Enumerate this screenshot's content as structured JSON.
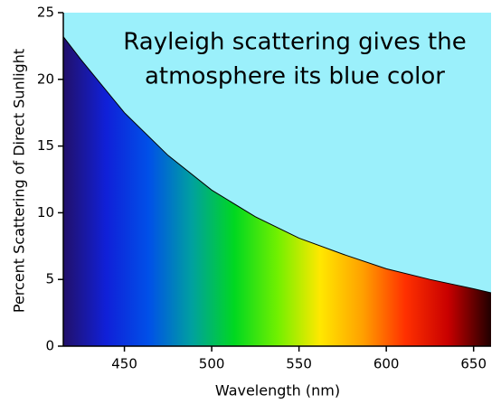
{
  "chart_data": {
    "type": "area",
    "annotation": [
      "Rayleigh scattering gives the",
      "atmosphere its blue color"
    ],
    "x_label": "Wavelength (nm)",
    "y_label": "Percent Scattering of Direct Sunlight",
    "x": [
      415,
      425,
      450,
      475,
      500,
      525,
      550,
      575,
      600,
      625,
      650,
      660
    ],
    "values": [
      23.2,
      21.5,
      17.5,
      14.3,
      11.7,
      9.7,
      8.1,
      6.9,
      5.8,
      5.0,
      4.3,
      4.0
    ],
    "xlim": [
      415,
      660
    ],
    "xticks": [
      450,
      500,
      550,
      600,
      650
    ],
    "ylim": [
      0,
      25
    ],
    "yticks": [
      0,
      5,
      10,
      15,
      20,
      25
    ],
    "background_color": "#9bf0fb",
    "line_color": "#000000",
    "area_colors": [
      "#22106a",
      "#1020d8",
      "#0050e8",
      "#00a0a0",
      "#00d820",
      "#70f000",
      "#ffe800",
      "#ffa000",
      "#ff3000",
      "#c80000",
      "#200000"
    ]
  }
}
